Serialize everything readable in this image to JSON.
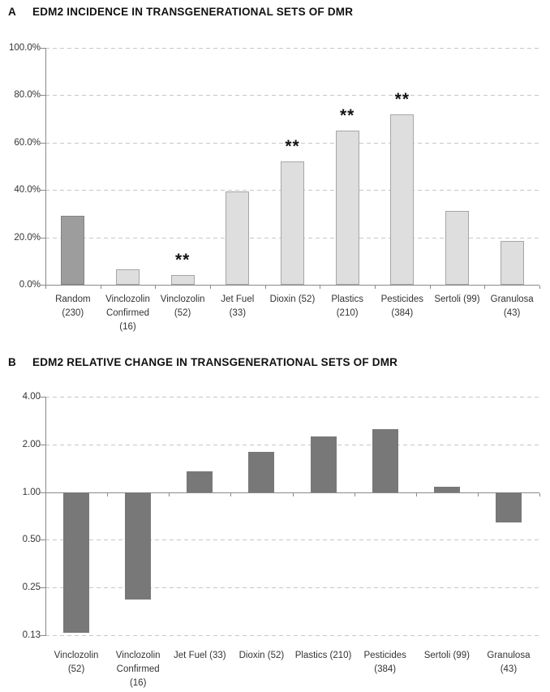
{
  "figure": {
    "background": "#ffffff"
  },
  "colors": {
    "highlight_bar_fill": "#9d9d9d",
    "highlight_bar_border": "#828282",
    "light_bar_fill": "#dedede",
    "light_bar_border": "#a6a6a6",
    "dark_bar_fill": "#787878",
    "gridline": "#c7c7c7",
    "axis": "#8a8a8a",
    "label_text": "#333333",
    "title_text": "#111111"
  },
  "chart_data": [
    {
      "type": "bar",
      "panel": "A",
      "title": "EDM2 INCIDENCE IN TRANSGENERATIONAL SETS OF DMR",
      "scale": "linear",
      "unit": "%",
      "ylim": [
        0,
        100
      ],
      "grid": "horizontal-dashed",
      "legend": null,
      "significance_marker": "**",
      "yticks": [
        {
          "value": 100,
          "label": "100.0%"
        },
        {
          "value": 80,
          "label": "80.0%"
        },
        {
          "value": 60,
          "label": "60.0%"
        },
        {
          "value": 40,
          "label": "40.0%"
        },
        {
          "value": 20,
          "label": "20.0%"
        },
        {
          "value": 0,
          "label": "0.0%"
        }
      ],
      "bars": [
        {
          "name": "Random (230)",
          "label_lines": [
            "Random",
            "(230)"
          ],
          "value": 29.0,
          "significant": false,
          "fill": "#9d9d9d",
          "stroke": "#828282"
        },
        {
          "name": "Vinclozolin Confirmed (16)",
          "label_lines": [
            "Vinclozolin",
            "Confirmed",
            "(16)"
          ],
          "value": 6.5,
          "significant": false,
          "fill": "#dedede",
          "stroke": "#a6a6a6"
        },
        {
          "name": "Vinclozolin (52)",
          "label_lines": [
            "Vinclozolin",
            "(52)"
          ],
          "value": 4.0,
          "significant": true,
          "fill": "#dedede",
          "stroke": "#a6a6a6"
        },
        {
          "name": "Jet Fuel (33)",
          "label_lines": [
            "Jet Fuel",
            "(33)"
          ],
          "value": 39.5,
          "significant": false,
          "fill": "#dedede",
          "stroke": "#a6a6a6"
        },
        {
          "name": "Dioxin (52)",
          "label_lines": [
            "Dioxin (52)"
          ],
          "value": 52.0,
          "significant": true,
          "fill": "#dedede",
          "stroke": "#a6a6a6"
        },
        {
          "name": "Plastics (210)",
          "label_lines": [
            "Plastics",
            "(210)"
          ],
          "value": 65.0,
          "significant": true,
          "fill": "#dedede",
          "stroke": "#a6a6a6"
        },
        {
          "name": "Pesticides (384)",
          "label_lines": [
            "Pesticides",
            "(384)"
          ],
          "value": 72.0,
          "significant": true,
          "fill": "#dedede",
          "stroke": "#a6a6a6"
        },
        {
          "name": "Sertoli (99)",
          "label_lines": [
            "Sertoli (99)"
          ],
          "value": 31.0,
          "significant": false,
          "fill": "#dedede",
          "stroke": "#a6a6a6"
        },
        {
          "name": "Granulosa (43)",
          "label_lines": [
            "Granulosa",
            "(43)"
          ],
          "value": 18.5,
          "significant": false,
          "fill": "#dedede",
          "stroke": "#a6a6a6"
        }
      ]
    },
    {
      "type": "bar",
      "panel": "B",
      "title": "EDM2 RELATIVE CHANGE IN TRANSGENERATIONAL SETS OF DMR",
      "scale": "log2",
      "baseline": 1.0,
      "ylim": [
        0.125,
        4.0
      ],
      "grid": "horizontal-dashed",
      "legend": null,
      "bar_fill": "#787878",
      "yticks": [
        {
          "value": 4.0,
          "label": "4.00"
        },
        {
          "value": 2.0,
          "label": "2.00"
        },
        {
          "value": 1.0,
          "label": "1.00"
        },
        {
          "value": 0.5,
          "label": "0.50"
        },
        {
          "value": 0.25,
          "label": "0.25"
        },
        {
          "value": 0.125,
          "label": "0.13"
        }
      ],
      "bars": [
        {
          "name": "Vinclozolin (52)",
          "label_lines": [
            "Vinclozolin",
            "(52)"
          ],
          "value": 0.13
        },
        {
          "name": "Vinclozolin Confirmed (16)",
          "label_lines": [
            "Vinclozolin",
            "Confirmed",
            "(16)"
          ],
          "value": 0.21
        },
        {
          "name": "Jet Fuel (33)",
          "label_lines": [
            "Jet Fuel (33)"
          ],
          "value": 1.36
        },
        {
          "name": "Dioxin (52)",
          "label_lines": [
            "Dioxin (52)"
          ],
          "value": 1.8
        },
        {
          "name": "Plastics (210)",
          "label_lines": [
            "Plastics (210)"
          ],
          "value": 2.25
        },
        {
          "name": "Pesticides (384)",
          "label_lines": [
            "Pesticides",
            "(384)"
          ],
          "value": 2.5
        },
        {
          "name": "Sertoli (99)",
          "label_lines": [
            "Sertoli (99)"
          ],
          "value": 1.08
        },
        {
          "name": "Granulosa (43)",
          "label_lines": [
            "Granulosa",
            "(43)"
          ],
          "value": 0.64
        }
      ]
    }
  ]
}
